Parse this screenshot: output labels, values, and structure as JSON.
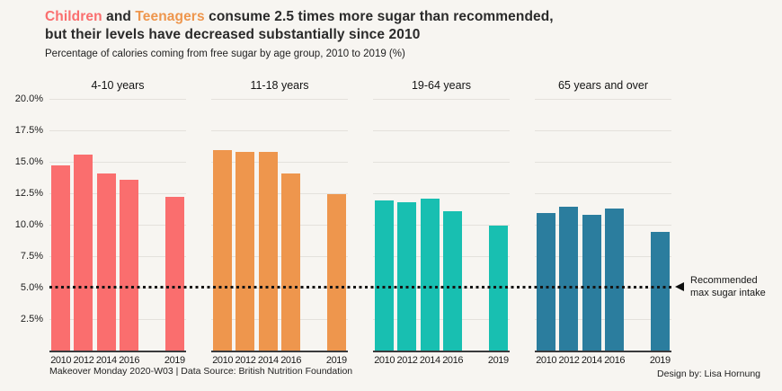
{
  "header": {
    "title_children": "Children",
    "title_and": "and",
    "title_teenagers": "Teenagers",
    "title_rest": "consume 2.5 times more sugar than recommended,",
    "title_line2": "but their levels have decreased substantially since 2010",
    "subtitle": "Percentage of calories coming from free sugar by age group, 2010 to 2019 (%)"
  },
  "colors": {
    "children_accent": "#FA6E6E",
    "teenagers_accent": "#EE964D",
    "adults_teal": "#18BFB1",
    "seniors_blue": "#2B7D9E",
    "background": "#F7F5F1",
    "reference_line": "#141414",
    "gridline": "#E4E1DC"
  },
  "annotation": {
    "line1": "Recommended",
    "line2": "max sugar intake"
  },
  "footer": {
    "left": "Makeover Monday 2020-W03 | Data Source: British Nutrition Foundation",
    "right": "Design by: Lisa Hornung"
  },
  "chart_data": {
    "type": "bar",
    "title": "Children and Teenagers consume 2.5 times more sugar than recommended, but their levels have decreased substantially since 2010",
    "subtitle": "Percentage of calories coming from free sugar by age group, 2010 to 2019 (%)",
    "categories": [
      "2010",
      "2012",
      "2014",
      "2016",
      "2019"
    ],
    "slot_layout": [
      "2010",
      "2012",
      "2014",
      "2016",
      null,
      "2019"
    ],
    "panels": [
      {
        "title": "4-10 years",
        "color": "#FA6E6E",
        "values": [
          14.7,
          15.6,
          14.1,
          13.6,
          12.2
        ]
      },
      {
        "title": "11-18 years",
        "color": "#EE964D",
        "values": [
          15.9,
          15.8,
          15.8,
          14.1,
          12.4
        ]
      },
      {
        "title": "19-64 years",
        "color": "#18BFB1",
        "values": [
          11.9,
          11.8,
          12.1,
          11.1,
          9.9
        ]
      },
      {
        "title": "65 years and over",
        "color": "#2B7D9E",
        "values": [
          10.9,
          11.4,
          10.8,
          11.3,
          9.4
        ]
      }
    ],
    "ylim": [
      0,
      20
    ],
    "ytick_values": [
      20,
      17.5,
      15,
      12.5,
      10,
      7.5,
      5,
      2.5
    ],
    "ytick_labels": [
      "20.0%",
      "17.5%",
      "15.0%",
      "12.5%",
      "10.0%",
      "7.5%",
      "5.0%",
      "2.5%"
    ],
    "grid": "horizontal",
    "legend": "none",
    "reference_line": {
      "value": 5,
      "label": "Recommended max sugar intake"
    }
  }
}
